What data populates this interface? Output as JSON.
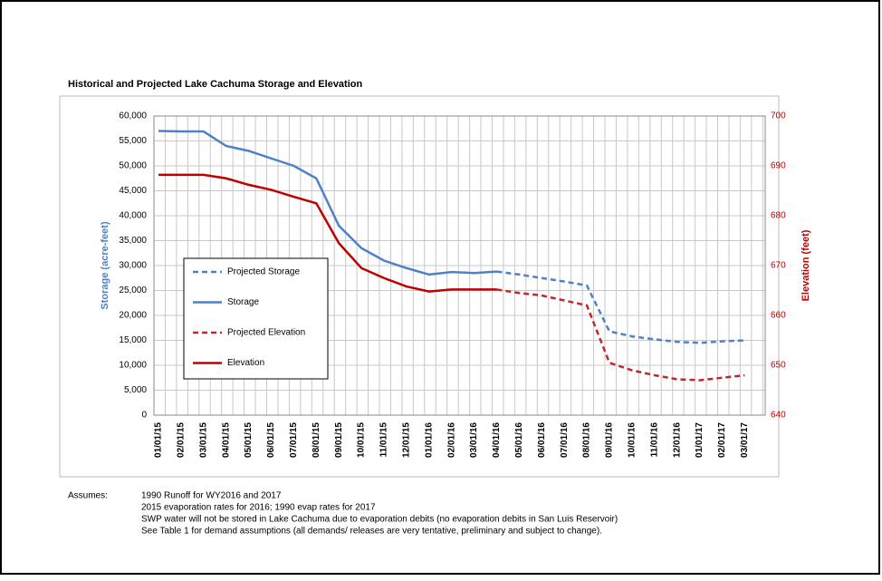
{
  "chart_data": {
    "type": "line",
    "title": "Historical and Projected Lake Cachuma Storage and Elevation",
    "y_label": "Storage (acre-feet)",
    "y2_label": "Elevation (feet)",
    "categories": [
      "01/01/15",
      "02/01/15",
      "03/01/15",
      "04/01/15",
      "05/01/15",
      "06/01/15",
      "07/01/15",
      "08/01/15",
      "09/01/15",
      "10/01/15",
      "11/01/15",
      "12/01/15",
      "01/01/16",
      "02/01/16",
      "03/01/16",
      "04/01/16",
      "05/01/16",
      "06/01/16",
      "07/01/16",
      "08/01/16",
      "09/01/16",
      "10/01/16",
      "11/01/16",
      "12/01/16",
      "01/01/17",
      "02/01/17",
      "03/01/17"
    ],
    "series": [
      {
        "name": "Projected Storage",
        "color": "#4f81c7",
        "dash": true,
        "axis": "y",
        "values": [
          null,
          null,
          null,
          null,
          null,
          null,
          null,
          null,
          null,
          null,
          null,
          null,
          null,
          null,
          null,
          28800,
          28200,
          27500,
          26800,
          26000,
          16800,
          15800,
          15200,
          14700,
          14500,
          14800,
          15000
        ]
      },
      {
        "name": "Storage",
        "color": "#4f81c7",
        "dash": false,
        "axis": "y",
        "values": [
          57000,
          56900,
          56900,
          54000,
          53000,
          51500,
          50000,
          47500,
          38000,
          33500,
          31000,
          29500,
          28200,
          28700,
          28500,
          28800,
          null,
          null,
          null,
          null,
          null,
          null,
          null,
          null,
          null,
          null,
          null
        ]
      },
      {
        "name": "Projected Elevation",
        "color": "#c0282d",
        "dash": true,
        "axis": "y2",
        "values": [
          null,
          null,
          null,
          null,
          null,
          null,
          null,
          null,
          null,
          null,
          null,
          null,
          null,
          null,
          null,
          665.2,
          664.5,
          664,
          663,
          662,
          650.5,
          649,
          648,
          647.2,
          647,
          647.5,
          648
        ]
      },
      {
        "name": "Elevation",
        "color": "#c00000",
        "dash": false,
        "axis": "y2",
        "values": [
          688.2,
          688.2,
          688.2,
          687.5,
          686.2,
          685.2,
          683.8,
          682.5,
          674.5,
          669.5,
          667.5,
          665.8,
          664.8,
          665.2,
          665.2,
          665.2,
          null,
          null,
          null,
          null,
          null,
          null,
          null,
          null,
          null,
          null,
          null
        ]
      }
    ],
    "ylim": [
      0,
      60000
    ],
    "yticks": [
      0,
      {
        "value": 5000,
        "label": "5,000"
      },
      {
        "value": 10000,
        "label": "10,000"
      },
      {
        "value": 15000,
        "label": "15,000"
      },
      {
        "value": 20000,
        "label": "20,000"
      },
      {
        "value": 25000,
        "label": "25,000"
      },
      {
        "value": 30000,
        "label": "30,000"
      },
      {
        "value": 35000,
        "label": "35,000"
      },
      {
        "value": 40000,
        "label": "40,000"
      },
      {
        "value": 45000,
        "label": "45,000"
      },
      {
        "value": 50000,
        "label": "50,000"
      },
      {
        "value": 55000,
        "label": "55,000"
      },
      {
        "value": 60000,
        "label": "60,000"
      }
    ],
    "y2lim": [
      640,
      700
    ],
    "y2ticks": [
      640,
      650,
      660,
      670,
      680,
      690,
      700
    ],
    "y2_color": "#c00000",
    "grid": true,
    "legend": "left"
  },
  "notes": {
    "label": "Assumes:",
    "lines": [
      "1990 Runoff for WY2016 and 2017",
      "2015 evaporation rates for 2016; 1990 evap rates for 2017",
      "SWP water will not be stored in Lake Cachuma due to evaporation debits (no evaporation debits in San Luis Reservoir)",
      "See Table 1 for demand assumptions (all demands/ releases are very tentative, preliminary and subject to change)."
    ]
  }
}
